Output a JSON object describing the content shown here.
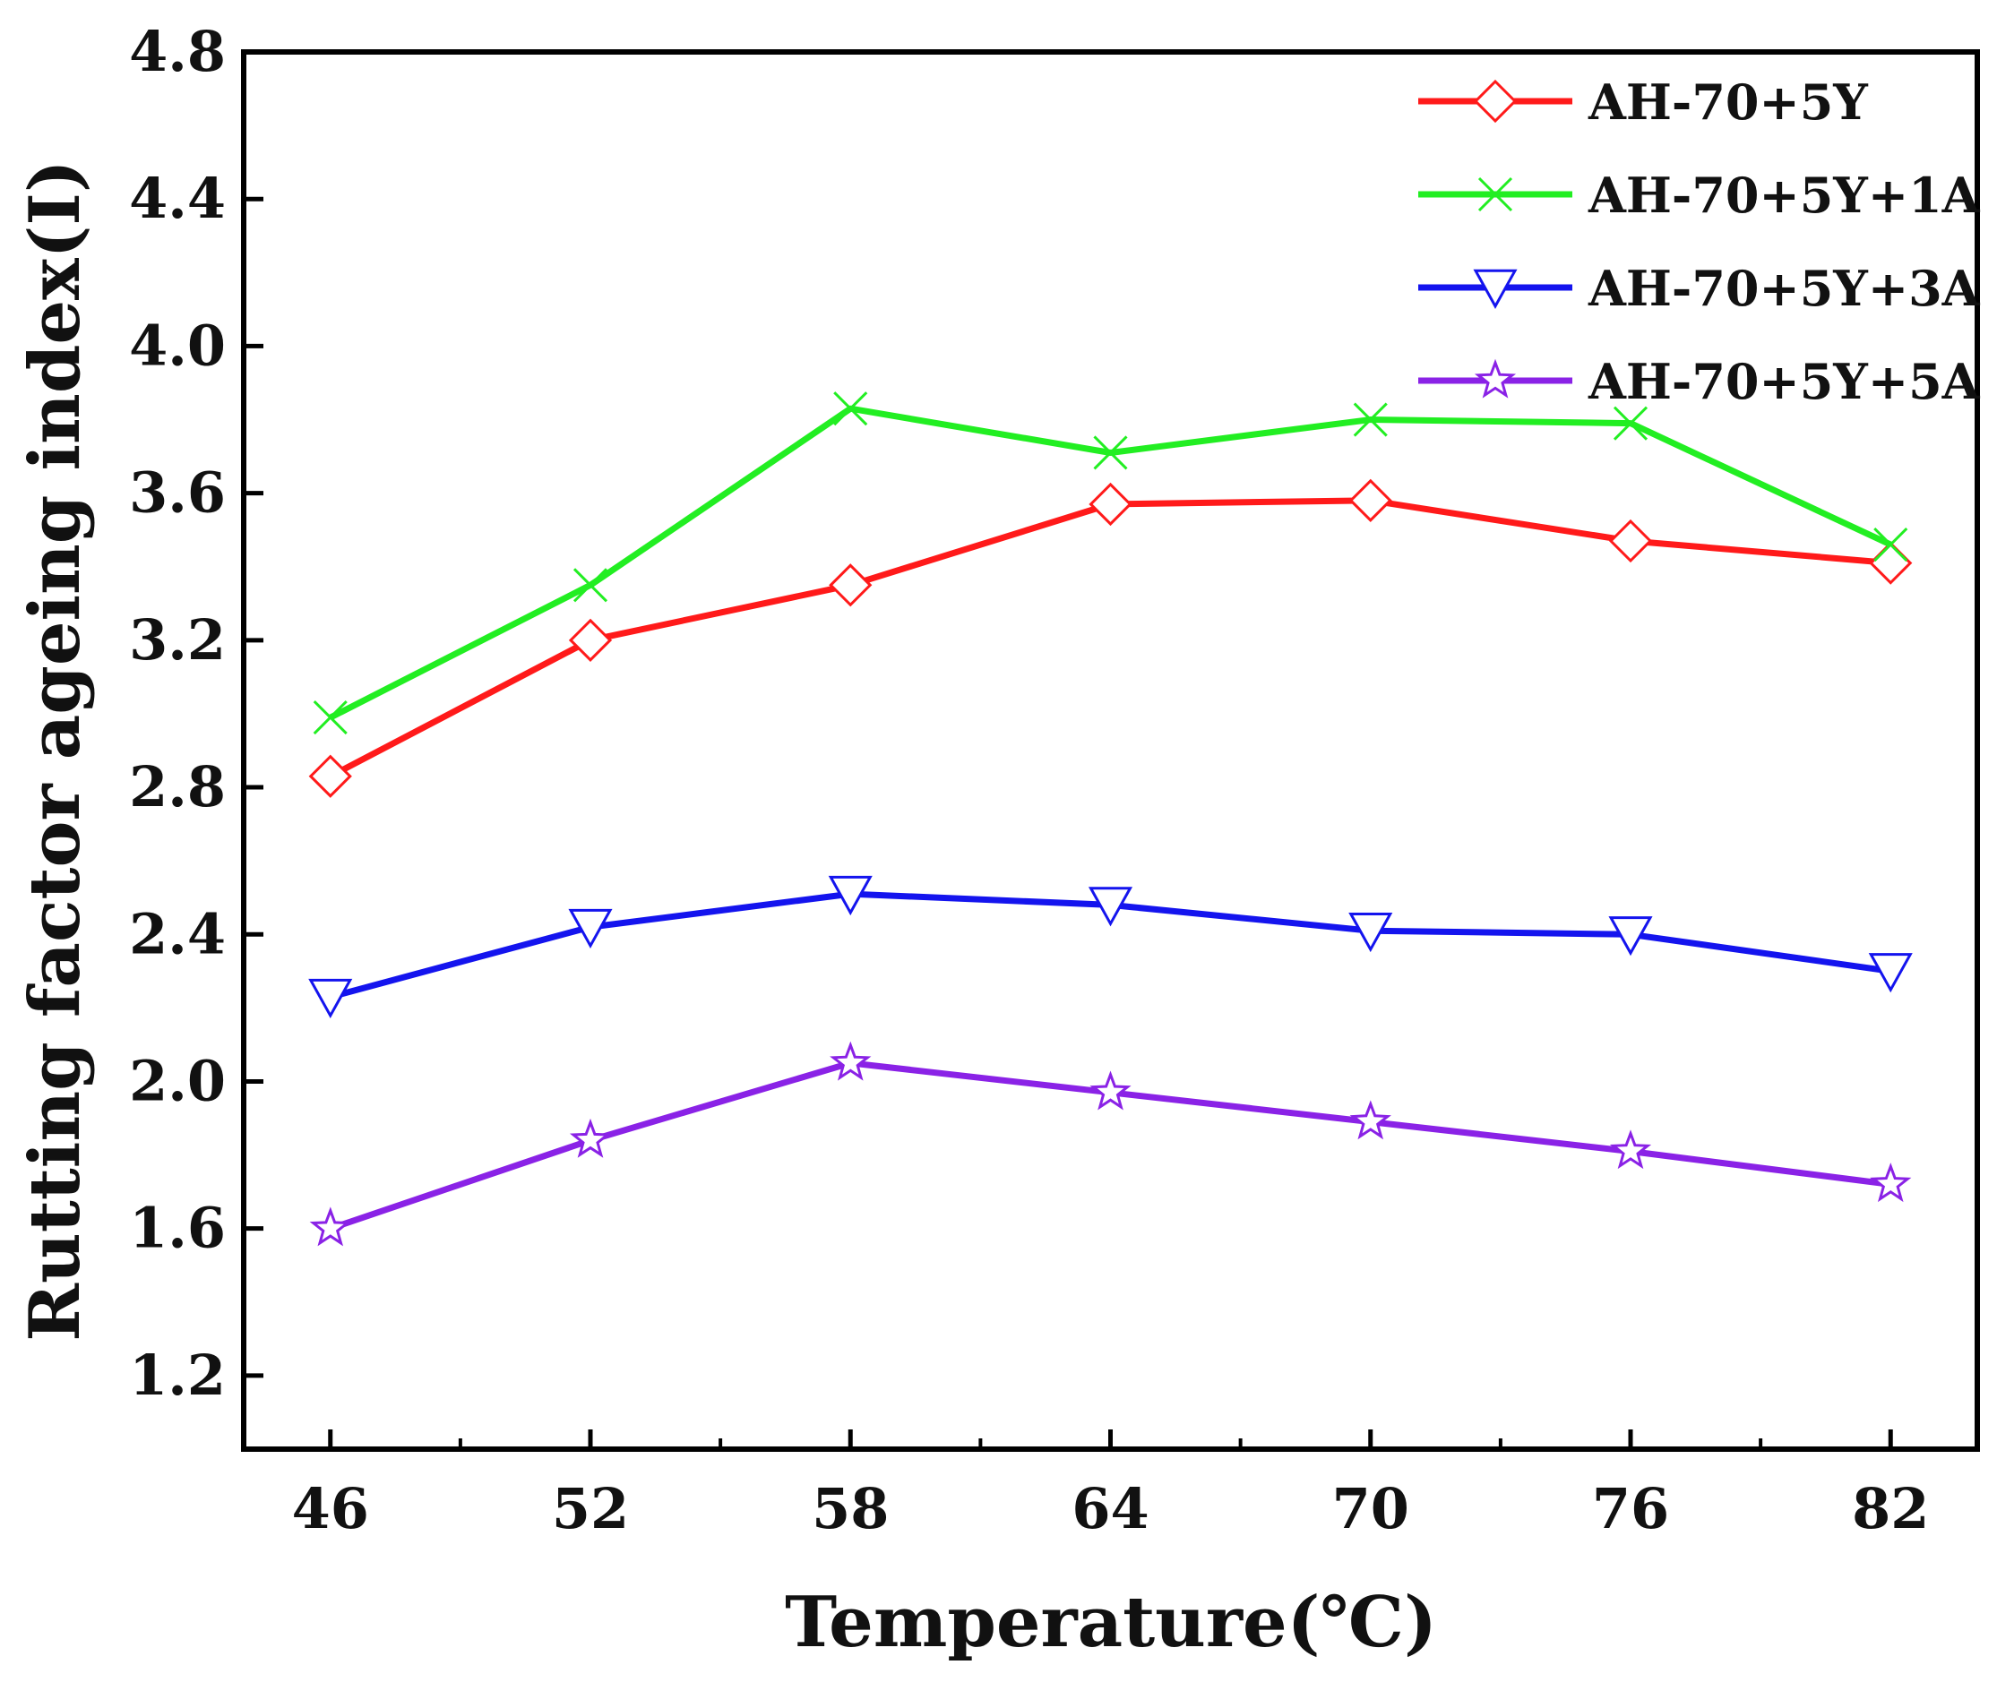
{
  "chart_data": {
    "type": "line",
    "title": "",
    "xlabel": "Temperature(℃)",
    "ylabel": "Rutting factor ageing index(I)",
    "x": [
      46,
      52,
      58,
      64,
      70,
      76,
      82
    ],
    "x_tick_labels": [
      "46",
      "52",
      "58",
      "64",
      "70",
      "76",
      "82"
    ],
    "xlim": [
      44,
      84
    ],
    "ylim": [
      1.0,
      4.8
    ],
    "y_ticks": [
      1.2,
      1.6,
      2.0,
      2.4,
      2.8,
      3.2,
      3.6,
      4.0,
      4.4,
      4.8
    ],
    "y_tick_labels": [
      "1.2",
      "1.6",
      "2.0",
      "2.4",
      "2.8",
      "3.2",
      "3.6",
      "4.0",
      "4.4",
      "4.8"
    ],
    "grid": false,
    "legend_position": "top-right",
    "series": [
      {
        "name": "AH-70+5Y",
        "color": "#ff1a1a",
        "marker": "diamond",
        "values": [
          2.83,
          3.2,
          3.35,
          3.57,
          3.58,
          3.47,
          3.41
        ]
      },
      {
        "name": "AH-70+5Y+1A",
        "color": "#22ee22",
        "marker": "x",
        "values": [
          2.99,
          3.35,
          3.83,
          3.71,
          3.8,
          3.79,
          3.46
        ]
      },
      {
        "name": "AH-70+5Y+3A",
        "color": "#1414ee",
        "marker": "triangle-down",
        "values": [
          2.23,
          2.42,
          2.51,
          2.48,
          2.41,
          2.4,
          2.3
        ]
      },
      {
        "name": "AH-70+5Y+5A",
        "color": "#8a22e6",
        "marker": "star",
        "values": [
          1.6,
          1.84,
          2.05,
          1.97,
          1.89,
          1.81,
          1.72
        ]
      }
    ]
  }
}
